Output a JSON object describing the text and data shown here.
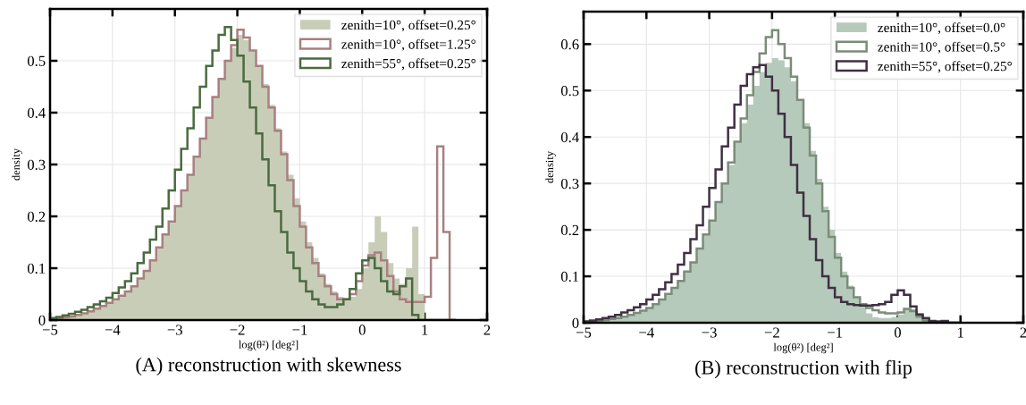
{
  "chart_data": [
    {
      "type": "histogram",
      "xlabel": "log(θ²) [deg²]",
      "ylabel": "density",
      "annotations": [
        "(A) reconstruction with skewness"
      ],
      "bins": [
        -5,
        -4.9,
        -4.8,
        -4.7,
        -4.6,
        -4.5,
        -4.4,
        -4.3,
        -4.2,
        -4.1,
        -4,
        -3.9,
        -3.8,
        -3.7,
        -3.6,
        -3.5,
        -3.4,
        -3.3,
        -3.2,
        -3.1,
        -3,
        -2.9,
        -2.8,
        -2.7,
        -2.6,
        -2.5,
        -2.4,
        -2.3,
        -2.2,
        -2.1,
        -2,
        -1.9,
        -1.8,
        -1.7,
        -1.6,
        -1.5,
        -1.4,
        -1.3,
        -1.2,
        -1.1,
        -1,
        -0.9,
        -0.8,
        -0.7,
        -0.6,
        -0.5,
        -0.4,
        -0.3,
        -0.2,
        -0.1,
        0,
        0.1,
        0.2,
        0.3,
        0.4,
        0.5,
        0.6,
        0.7,
        0.8,
        0.9,
        1,
        1.1,
        1.2,
        1.3,
        1.4,
        1.5
      ],
      "series": [
        {
          "name": "zenith=10°, offset=0.25°",
          "color": "#c8cdb8",
          "values": [
            0.002,
            0.003,
            0.005,
            0.007,
            0.01,
            0.013,
            0.017,
            0.022,
            0.027,
            0.033,
            0.04,
            0.047,
            0.055,
            0.065,
            0.08,
            0.095,
            0.115,
            0.14,
            0.165,
            0.19,
            0.22,
            0.25,
            0.28,
            0.315,
            0.35,
            0.39,
            0.43,
            0.465,
            0.5,
            0.525,
            0.55,
            0.54,
            0.52,
            0.49,
            0.455,
            0.415,
            0.37,
            0.325,
            0.28,
            0.235,
            0.19,
            0.15,
            0.12,
            0.09,
            0.07,
            0.055,
            0.045,
            0.04,
            0.045,
            0.06,
            0.1,
            0.15,
            0.2,
            0.17,
            0.11,
            0.08,
            0.07,
            0.1,
            0.18,
            0.05,
            0,
            0,
            0,
            0,
            0
          ]
        },
        {
          "name": "zenith=10°, offset=1.25°",
          "color": "#a88080",
          "values": [
            0.002,
            0.003,
            0.005,
            0.007,
            0.01,
            0.013,
            0.017,
            0.022,
            0.027,
            0.033,
            0.04,
            0.047,
            0.055,
            0.065,
            0.08,
            0.095,
            0.115,
            0.14,
            0.165,
            0.19,
            0.22,
            0.25,
            0.28,
            0.315,
            0.35,
            0.39,
            0.43,
            0.465,
            0.5,
            0.53,
            0.56,
            0.545,
            0.52,
            0.49,
            0.45,
            0.41,
            0.365,
            0.32,
            0.27,
            0.22,
            0.18,
            0.14,
            0.11,
            0.085,
            0.065,
            0.05,
            0.04,
            0.04,
            0.05,
            0.075,
            0.105,
            0.125,
            0.13,
            0.115,
            0.085,
            0.055,
            0.04,
            0.035,
            0.035,
            0.035,
            0.045,
            0.12,
            0.335,
            0.17,
            0
          ]
        },
        {
          "name": "zenith=55°, offset=0.25°",
          "color": "#4a6b3f",
          "values": [
            0.004,
            0.006,
            0.009,
            0.012,
            0.016,
            0.02,
            0.025,
            0.03,
            0.036,
            0.043,
            0.052,
            0.063,
            0.075,
            0.09,
            0.11,
            0.13,
            0.155,
            0.18,
            0.215,
            0.25,
            0.29,
            0.33,
            0.37,
            0.41,
            0.45,
            0.49,
            0.52,
            0.55,
            0.565,
            0.54,
            0.51,
            0.46,
            0.41,
            0.36,
            0.31,
            0.26,
            0.21,
            0.17,
            0.13,
            0.1,
            0.075,
            0.055,
            0.04,
            0.03,
            0.025,
            0.025,
            0.03,
            0.04,
            0.06,
            0.09,
            0.115,
            0.12,
            0.1,
            0.075,
            0.055,
            0.05,
            0.065,
            0.08,
            0.01,
            0,
            0,
            0,
            0,
            0,
            0
          ]
        }
      ],
      "xlim": [
        -5,
        2
      ],
      "xticks": [
        -5,
        -4,
        -3,
        -2,
        -1,
        0,
        1,
        2
      ],
      "ylim": [
        0,
        0.6
      ],
      "yticks": [
        0,
        0.1,
        0.2,
        0.3,
        0.4,
        0.5
      ],
      "grid": true,
      "legend": "top right"
    },
    {
      "type": "histogram",
      "xlabel": "log(θ²) [deg²]",
      "ylabel": "density",
      "annotations": [
        "(B) reconstruction with flip"
      ],
      "bins": [
        -5,
        -4.9,
        -4.8,
        -4.7,
        -4.6,
        -4.5,
        -4.4,
        -4.3,
        -4.2,
        -4.1,
        -4,
        -3.9,
        -3.8,
        -3.7,
        -3.6,
        -3.5,
        -3.4,
        -3.3,
        -3.2,
        -3.1,
        -3,
        -2.9,
        -2.8,
        -2.7,
        -2.6,
        -2.5,
        -2.4,
        -2.3,
        -2.2,
        -2.1,
        -2,
        -1.9,
        -1.8,
        -1.7,
        -1.6,
        -1.5,
        -1.4,
        -1.3,
        -1.2,
        -1.1,
        -1,
        -0.9,
        -0.8,
        -0.7,
        -0.6,
        -0.5,
        -0.4,
        -0.3,
        -0.2,
        -0.1,
        0,
        0.1,
        0.2,
        0.3,
        0.4,
        0.5,
        0.6,
        0.7,
        0.8,
        0.9,
        1
      ],
      "series": [
        {
          "name": "zenith=10°, offset=0.0°",
          "color": "#b6cabb",
          "values": [
            0.002,
            0.003,
            0.004,
            0.006,
            0.008,
            0.01,
            0.013,
            0.017,
            0.021,
            0.026,
            0.032,
            0.04,
            0.05,
            0.062,
            0.075,
            0.09,
            0.11,
            0.13,
            0.16,
            0.19,
            0.22,
            0.26,
            0.3,
            0.34,
            0.39,
            0.43,
            0.47,
            0.51,
            0.54,
            0.56,
            0.57,
            0.565,
            0.55,
            0.52,
            0.48,
            0.43,
            0.37,
            0.31,
            0.25,
            0.2,
            0.15,
            0.11,
            0.08,
            0.055,
            0.035,
            0.02,
            0.012,
            0.01,
            0.01,
            0.012,
            0.018,
            0.03,
            0.03,
            0.02,
            0.01,
            0.005,
            0.002,
            0,
            0,
            0
          ]
        },
        {
          "name": "zenith=10°, offset=0.5°",
          "color": "#7b8c79",
          "values": [
            0.002,
            0.003,
            0.004,
            0.006,
            0.008,
            0.01,
            0.013,
            0.017,
            0.021,
            0.026,
            0.032,
            0.04,
            0.05,
            0.062,
            0.075,
            0.09,
            0.11,
            0.13,
            0.16,
            0.19,
            0.22,
            0.26,
            0.3,
            0.345,
            0.39,
            0.44,
            0.49,
            0.54,
            0.58,
            0.615,
            0.63,
            0.6,
            0.57,
            0.53,
            0.48,
            0.42,
            0.36,
            0.3,
            0.24,
            0.185,
            0.14,
            0.1,
            0.075,
            0.055,
            0.04,
            0.032,
            0.027,
            0.022,
            0.02,
            0.02,
            0.022,
            0.03,
            0.025,
            0.013,
            0.005,
            0.002,
            0,
            0,
            0,
            0
          ]
        },
        {
          "name": "zenith=55°, offset=0.25°",
          "color": "#3f3042",
          "values": [
            0.003,
            0.005,
            0.007,
            0.01,
            0.013,
            0.017,
            0.022,
            0.027,
            0.033,
            0.04,
            0.05,
            0.06,
            0.072,
            0.087,
            0.105,
            0.125,
            0.15,
            0.18,
            0.21,
            0.25,
            0.29,
            0.33,
            0.38,
            0.42,
            0.47,
            0.51,
            0.535,
            0.55,
            0.555,
            0.53,
            0.5,
            0.45,
            0.4,
            0.34,
            0.28,
            0.23,
            0.18,
            0.135,
            0.1,
            0.075,
            0.055,
            0.045,
            0.04,
            0.038,
            0.037,
            0.037,
            0.038,
            0.04,
            0.045,
            0.06,
            0.07,
            0.06,
            0.035,
            0.018,
            0.01,
            0.004,
            0.003,
            0.004,
            0,
            0
          ]
        }
      ],
      "xlim": [
        -5,
        2
      ],
      "xticks": [
        -5,
        -4,
        -3,
        -2,
        -1,
        0,
        1,
        2
      ],
      "ylim": [
        0,
        0.67
      ],
      "yticks": [
        0,
        0.1,
        0.2,
        0.3,
        0.4,
        0.5,
        0.6
      ],
      "grid": true,
      "legend": "top right"
    }
  ]
}
